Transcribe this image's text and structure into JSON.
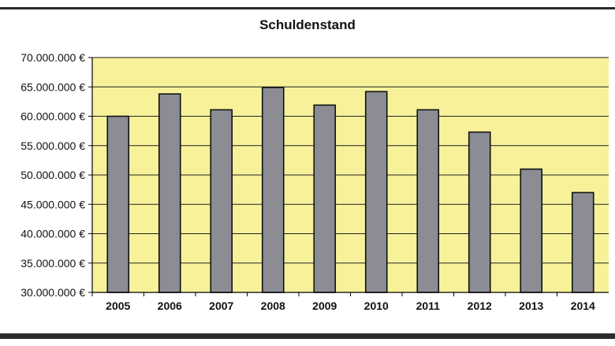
{
  "chart_data": {
    "type": "bar",
    "title": "Schuldenstand",
    "xlabel": "",
    "ylabel": "",
    "categories": [
      "2005",
      "2006",
      "2007",
      "2008",
      "2009",
      "2010",
      "2011",
      "2012",
      "2013",
      "2014"
    ],
    "values": [
      60000000,
      63800000,
      61100000,
      64900000,
      61900000,
      64200000,
      61100000,
      57300000,
      51000000,
      47000000
    ],
    "ylim": [
      30000000,
      70000000
    ],
    "yticks": [
      30000000,
      35000000,
      40000000,
      45000000,
      50000000,
      55000000,
      60000000,
      65000000,
      70000000
    ],
    "ytick_labels": [
      "30.000.000 €",
      "35.000.000 €",
      "40.000.000 €",
      "45.000.000 €",
      "50.000.000 €",
      "55.000.000 €",
      "60.000.000 €",
      "65.000.000 €",
      "70.000.000 €"
    ],
    "grid": true,
    "legend": "none",
    "colors": {
      "plot_background": "#f7f29a",
      "bar_fill": "#8c8c94",
      "bar_stroke": "#111111",
      "grid": "#222222",
      "frame_rule": "#2b2b2b"
    }
  }
}
